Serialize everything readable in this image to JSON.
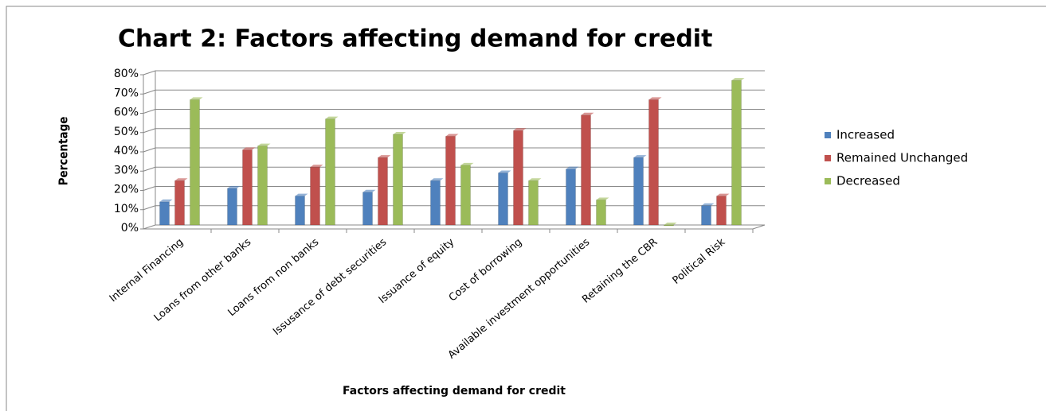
{
  "chart_data": {
    "type": "bar",
    "title": "Chart 2: Factors affecting demand for credit",
    "x_label": "Factors affecting demand for credit",
    "y_label": "Percentage",
    "categories": [
      "Internal Financing",
      "Loans from other banks",
      "Loans from non banks",
      "Issusance of debt securities",
      "Issuance of equity",
      "Cost of borrowing",
      "Available investment opportunities",
      "Retaining the CBR",
      "Political Risk"
    ],
    "series": [
      {
        "name": "Increased",
        "color": "#4f81bd",
        "values": [
          12,
          19,
          15,
          17,
          23,
          27,
          29,
          35,
          10
        ]
      },
      {
        "name": "Remained Unchanged",
        "color": "#c0504d",
        "values": [
          23,
          39,
          30,
          35,
          46,
          49,
          57,
          65,
          15
        ]
      },
      {
        "name": "Decreased",
        "color": "#9bbb59",
        "values": [
          65,
          41,
          55,
          47,
          31,
          23,
          13,
          0,
          75
        ]
      }
    ],
    "ylim": [
      0,
      80
    ],
    "yticks": [
      {
        "value": 0,
        "label": "0%"
      },
      {
        "value": 10,
        "label": "10%"
      },
      {
        "value": 20,
        "label": "20%"
      },
      {
        "value": 30,
        "label": "30%"
      },
      {
        "value": 40,
        "label": "40%"
      },
      {
        "value": 50,
        "label": "50%"
      },
      {
        "value": 60,
        "label": "60%"
      },
      {
        "value": 70,
        "label": "70%"
      },
      {
        "value": 80,
        "label": "80%"
      }
    ],
    "grid": true,
    "legend": "right"
  }
}
